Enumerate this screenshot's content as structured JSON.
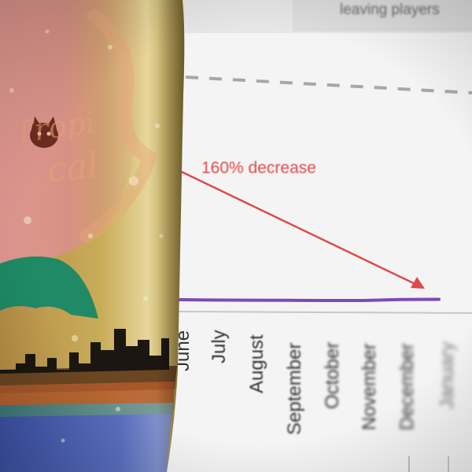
{
  "scene": {
    "description_tags": [
      "photo",
      "drink-can",
      "blurred-chart-background"
    ]
  },
  "background_chart": {
    "legend_text": "leaving players",
    "annotation": "160% decrease",
    "months": [
      "June",
      "July",
      "August",
      "September",
      "October",
      "November",
      "December",
      "January"
    ],
    "colors": {
      "series_line": "#7b4bb3",
      "annotation": "#de4a4a",
      "dashed_line": "#9a9a9a"
    },
    "chart_data": {
      "type": "line",
      "categories": [
        "June",
        "July",
        "August",
        "September",
        "October",
        "November",
        "December",
        "January"
      ],
      "series": [
        {
          "name": "leaving players",
          "values": [
            0.95,
            0.92,
            0.91,
            0.9,
            0.89,
            0.89,
            0.96,
            0.97
          ]
        }
      ],
      "annotations": [
        "160% decrease"
      ]
    }
  },
  "can": {
    "colors": {
      "gold": "#c7a84a",
      "pink": "#d99090",
      "green": "#1e8a63",
      "blue": "#4a63b4"
    },
    "icon": "cat-face-icon"
  }
}
